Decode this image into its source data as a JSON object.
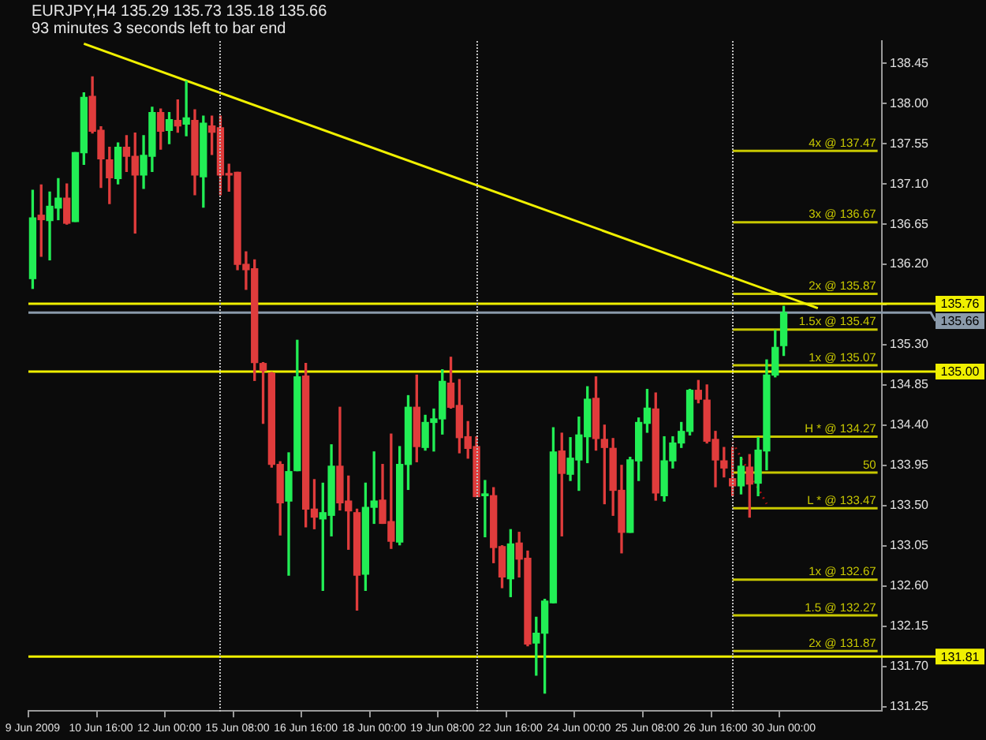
{
  "chart_data": {
    "type": "candlestick",
    "title": "EURJPY,H4 135.29 135.73 135.18 135.66",
    "subtitle": "93 minutes 3 seconds left to bar end",
    "categories": [
      "9 Jun 2009",
      null,
      null,
      null,
      null,
      null,
      null,
      null,
      "10 Jun 16:00",
      null,
      null,
      null,
      null,
      null,
      null,
      null,
      "12 Jun 00:00",
      null,
      null,
      null,
      null,
      null,
      null,
      null,
      "15 Jun 08:00",
      null,
      null,
      null,
      null,
      null,
      null,
      null,
      "16 Jun 16:00",
      null,
      null,
      null,
      null,
      null,
      null,
      null,
      "18 Jun 00:00",
      null,
      null,
      null,
      null,
      null,
      null,
      null,
      "19 Jun 08:00",
      null,
      null,
      null,
      null,
      null,
      null,
      null,
      "22 Jun 16:00",
      null,
      null,
      null,
      null,
      null,
      null,
      null,
      "24 Jun 00:00",
      null,
      null,
      null,
      null,
      null,
      null,
      null,
      "25 Jun 08:00",
      null,
      null,
      null,
      null,
      null,
      null,
      null,
      "26 Jun 16:00",
      null,
      null,
      null,
      null,
      null,
      null,
      null,
      "30 Jun 00:00",
      null,
      null,
      null,
      null,
      null,
      null,
      null,
      null,
      null,
      null,
      null
    ],
    "ohlc": [
      [
        136.04,
        137.03,
        135.93,
        136.72
      ],
      [
        136.75,
        137.09,
        136.29,
        136.7
      ],
      [
        136.69,
        137.01,
        136.25,
        136.85
      ],
      [
        136.83,
        137.16,
        136.7,
        136.94
      ],
      [
        136.94,
        137.1,
        136.65,
        136.66
      ],
      [
        136.68,
        137.45,
        136.68,
        137.45
      ],
      [
        137.45,
        138.12,
        137.32,
        138.07
      ],
      [
        138.08,
        138.3,
        137.67,
        137.69
      ],
      [
        137.7,
        137.74,
        137.06,
        137.38
      ],
      [
        137.37,
        137.51,
        136.88,
        137.17
      ],
      [
        137.16,
        137.56,
        137.1,
        137.51
      ],
      [
        137.51,
        137.64,
        137.24,
        137.41
      ],
      [
        137.41,
        137.67,
        136.55,
        137.2
      ],
      [
        137.2,
        137.64,
        137.05,
        137.42
      ],
      [
        137.41,
        137.96,
        137.24,
        137.9
      ],
      [
        137.9,
        137.94,
        137.49,
        137.69
      ],
      [
        137.7,
        137.9,
        137.55,
        137.82
      ],
      [
        137.81,
        138.04,
        137.68,
        137.75
      ],
      [
        137.77,
        138.25,
        137.64,
        137.84
      ],
      [
        137.81,
        137.93,
        136.98,
        137.2
      ],
      [
        137.18,
        137.86,
        136.84,
        137.78
      ],
      [
        137.75,
        137.86,
        137.43,
        137.68
      ],
      [
        137.73,
        137.86,
        136.98,
        137.2
      ],
      [
        137.21,
        137.32,
        137.02,
        137.2
      ],
      [
        137.23,
        137.23,
        136.14,
        136.2
      ],
      [
        136.2,
        136.34,
        135.92,
        136.14
      ],
      [
        136.15,
        136.25,
        134.9,
        135.1
      ],
      [
        135.09,
        135.1,
        134.42,
        135.01
      ],
      [
        134.98,
        134.99,
        133.93,
        133.96
      ],
      [
        133.96,
        133.99,
        133.17,
        133.53
      ],
      [
        133.55,
        134.09,
        132.72,
        133.88
      ],
      [
        133.89,
        135.35,
        133.89,
        134.94
      ],
      [
        134.95,
        135.09,
        133.26,
        133.46
      ],
      [
        133.46,
        133.79,
        133.24,
        133.37
      ],
      [
        133.35,
        133.75,
        132.55,
        133.42
      ],
      [
        133.39,
        134.18,
        133.16,
        133.94
      ],
      [
        133.94,
        134.6,
        133.45,
        133.53
      ],
      [
        133.55,
        133.83,
        133.01,
        133.44
      ],
      [
        133.42,
        133.46,
        132.33,
        132.72
      ],
      [
        132.73,
        133.75,
        132.55,
        133.48
      ],
      [
        133.48,
        134.1,
        133.3,
        133.55
      ],
      [
        133.56,
        133.96,
        133.3,
        133.3
      ],
      [
        133.32,
        134.3,
        133.02,
        133.1
      ],
      [
        133.09,
        134.16,
        133.06,
        133.96
      ],
      [
        133.96,
        134.73,
        133.68,
        134.6
      ],
      [
        134.6,
        134.96,
        133.99,
        134.16
      ],
      [
        134.15,
        134.51,
        134.12,
        134.43
      ],
      [
        134.43,
        134.58,
        134.11,
        134.47
      ],
      [
        134.47,
        135.02,
        134.3,
        134.89
      ],
      [
        134.87,
        135.16,
        134.59,
        134.6
      ],
      [
        134.62,
        134.91,
        134.09,
        134.26
      ],
      [
        134.27,
        134.44,
        134.03,
        134.14
      ],
      [
        134.16,
        134.27,
        133.6,
        133.6
      ],
      [
        133.61,
        133.78,
        133.15,
        133.63
      ],
      [
        133.61,
        133.7,
        132.86,
        133.03
      ],
      [
        133.04,
        133.05,
        132.58,
        132.7
      ],
      [
        132.68,
        133.23,
        132.48,
        133.07
      ],
      [
        133.08,
        133.2,
        132.7,
        132.9
      ],
      [
        132.91,
        132.99,
        131.93,
        131.95
      ],
      [
        131.96,
        132.25,
        131.6,
        132.07
      ],
      [
        132.07,
        132.45,
        131.4,
        132.43
      ],
      [
        132.41,
        134.37,
        132.41,
        134.1
      ],
      [
        134.11,
        134.31,
        133.16,
        133.86
      ],
      [
        133.85,
        134.26,
        133.78,
        134.03
      ],
      [
        134.01,
        134.49,
        133.67,
        134.29
      ],
      [
        134.27,
        134.83,
        133.98,
        134.69
      ],
      [
        134.7,
        134.94,
        134.12,
        134.25
      ],
      [
        134.24,
        134.4,
        133.52,
        134.15
      ],
      [
        134.14,
        134.25,
        133.39,
        133.67
      ],
      [
        133.67,
        133.95,
        132.97,
        133.2
      ],
      [
        133.2,
        134.04,
        133.2,
        134.01
      ],
      [
        134.0,
        134.48,
        133.78,
        134.43
      ],
      [
        134.42,
        134.8,
        134.32,
        134.59
      ],
      [
        134.58,
        134.76,
        133.56,
        133.64
      ],
      [
        133.61,
        134.27,
        133.55,
        134.0
      ],
      [
        134.0,
        134.27,
        133.92,
        134.2
      ],
      [
        134.2,
        134.43,
        134.15,
        134.33
      ],
      [
        134.33,
        134.8,
        134.29,
        134.79
      ],
      [
        134.79,
        134.9,
        134.65,
        134.69
      ],
      [
        134.68,
        134.85,
        134.2,
        134.22
      ],
      [
        134.24,
        134.33,
        133.71,
        134.01
      ],
      [
        134.0,
        134.15,
        133.82,
        133.92
      ],
      [
        133.8,
        134.15,
        133.61,
        133.72
      ],
      [
        133.72,
        134.04,
        133.63,
        133.94
      ],
      [
        133.93,
        134.07,
        133.37,
        133.74
      ],
      [
        133.75,
        134.26,
        133.61,
        134.12
      ],
      [
        134.11,
        135.13,
        133.9,
        134.96
      ],
      [
        134.96,
        135.46,
        134.94,
        135.27
      ],
      [
        135.29,
        135.73,
        135.18,
        135.66
      ],
      null,
      null,
      null,
      null,
      null,
      null,
      null,
      null,
      null,
      null,
      null
    ],
    "colors": [
      "#22ee55",
      "#e03c3c",
      "#22ee55",
      "#22ee55",
      "#e03c3c",
      "#22ee55",
      "#22ee55",
      "#e03c3c",
      "#e03c3c",
      "#e03c3c",
      "#22ee55",
      "#e03c3c",
      "#e03c3c",
      "#22ee55",
      "#22ee55",
      "#e03c3c",
      "#22ee55",
      "#e03c3c",
      "#22ee55",
      "#e03c3c",
      "#22ee55",
      "#e03c3c",
      "#e03c3c",
      "#e03c3c",
      "#e03c3c",
      "#e03c3c",
      "#e03c3c",
      "#e03c3c",
      "#e03c3c",
      "#e03c3c",
      "#22ee55",
      "#22ee55",
      "#e03c3c",
      "#e03c3c",
      "#22ee55",
      "#22ee55",
      "#e03c3c",
      "#e03c3c",
      "#e03c3c",
      "#22ee55",
      "#22ee55",
      "#e03c3c",
      "#e03c3c",
      "#22ee55",
      "#22ee55",
      "#e03c3c",
      "#22ee55",
      "#22ee55",
      "#22ee55",
      "#e03c3c",
      "#e03c3c",
      "#e03c3c",
      "#e03c3c",
      "#22ee55",
      "#e03c3c",
      "#e03c3c",
      "#22ee55",
      "#e03c3c",
      "#e03c3c",
      "#22ee55",
      "#22ee55",
      "#22ee55",
      "#e03c3c",
      "#22ee55",
      "#22ee55",
      "#22ee55",
      "#e03c3c",
      "#e03c3c",
      "#e03c3c",
      "#e03c3c",
      "#22ee55",
      "#22ee55",
      "#22ee55",
      "#e03c3c",
      "#22ee55",
      "#22ee55",
      "#22ee55",
      "#22ee55",
      "#e03c3c",
      "#e03c3c",
      "#e03c3c",
      "#e03c3c",
      "#e03c3c",
      "#22ee55",
      "#e03c3c",
      "#22ee55",
      "#22ee55",
      "#22ee55",
      "#22ee55",
      null,
      null,
      null,
      null,
      null,
      null,
      null,
      null,
      null,
      null,
      null
    ],
    "series": [
      {
        "type": "line",
        "color": "#f0f000",
        "values": [
          null,
          null,
          null,
          null,
          null,
          null,
          138.67,
          null,
          null,
          null,
          null,
          null,
          null,
          null,
          null,
          null,
          null,
          null,
          null,
          null,
          null,
          null,
          null,
          null,
          null,
          null,
          null,
          null,
          null,
          null,
          null,
          null,
          null,
          null,
          null,
          null,
          null,
          null,
          null,
          null,
          null,
          null,
          null,
          null,
          null,
          null,
          null,
          null,
          null,
          null,
          null,
          null,
          null,
          null,
          null,
          null,
          null,
          null,
          null,
          null,
          null,
          null,
          null,
          null,
          null,
          null,
          null,
          null,
          null,
          null,
          null,
          null,
          null,
          null,
          null,
          null,
          null,
          null,
          null,
          null,
          null,
          null,
          null,
          null,
          null,
          null,
          null,
          null,
          null,
          null,
          null,
          null,
          135.71,
          null,
          null,
          null,
          null,
          null,
          null,
          null
        ]
      },
      {
        "type": "line",
        "name": "4x @ 137.47",
        "color": "#c8c800",
        "values": [
          null,
          null,
          null,
          null,
          null,
          null,
          null,
          null,
          null,
          null,
          null,
          null,
          null,
          null,
          null,
          null,
          null,
          null,
          null,
          null,
          null,
          null,
          null,
          null,
          null,
          null,
          null,
          null,
          null,
          null,
          null,
          null,
          null,
          null,
          null,
          null,
          null,
          null,
          null,
          null,
          null,
          null,
          null,
          null,
          null,
          null,
          null,
          null,
          null,
          null,
          null,
          null,
          null,
          null,
          null,
          null,
          null,
          null,
          null,
          null,
          null,
          null,
          null,
          null,
          null,
          null,
          null,
          null,
          null,
          null,
          null,
          null,
          null,
          null,
          null,
          null,
          null,
          null,
          null,
          null,
          null,
          null,
          137.47,
          137.47,
          137.47,
          137.47,
          137.47,
          137.47,
          137.47,
          137.47,
          137.47,
          137.47,
          137.47,
          137.47,
          137.47,
          137.47,
          137.47,
          137.47,
          137.47,
          137.47
        ]
      },
      {
        "type": "line",
        "name": "3x @ 136.67",
        "color": "#c8c800",
        "values": [
          null,
          null,
          null,
          null,
          null,
          null,
          null,
          null,
          null,
          null,
          null,
          null,
          null,
          null,
          null,
          null,
          null,
          null,
          null,
          null,
          null,
          null,
          null,
          null,
          null,
          null,
          null,
          null,
          null,
          null,
          null,
          null,
          null,
          null,
          null,
          null,
          null,
          null,
          null,
          null,
          null,
          null,
          null,
          null,
          null,
          null,
          null,
          null,
          null,
          null,
          null,
          null,
          null,
          null,
          null,
          null,
          null,
          null,
          null,
          null,
          null,
          null,
          null,
          null,
          null,
          null,
          null,
          null,
          null,
          null,
          null,
          null,
          null,
          null,
          null,
          null,
          null,
          null,
          null,
          null,
          null,
          null,
          136.67,
          136.67,
          136.67,
          136.67,
          136.67,
          136.67,
          136.67,
          136.67,
          136.67,
          136.67,
          136.67,
          136.67,
          136.67,
          136.67,
          136.67,
          136.67,
          136.67,
          136.67
        ]
      },
      {
        "type": "line",
        "name": "2x @ 135.87",
        "color": "#c8c800",
        "values": [
          null,
          null,
          null,
          null,
          null,
          null,
          null,
          null,
          null,
          null,
          null,
          null,
          null,
          null,
          null,
          null,
          null,
          null,
          null,
          null,
          null,
          null,
          null,
          null,
          null,
          null,
          null,
          null,
          null,
          null,
          null,
          null,
          null,
          null,
          null,
          null,
          null,
          null,
          null,
          null,
          null,
          null,
          null,
          null,
          null,
          null,
          null,
          null,
          null,
          null,
          null,
          null,
          null,
          null,
          null,
          null,
          null,
          null,
          null,
          null,
          null,
          null,
          null,
          null,
          null,
          null,
          null,
          null,
          null,
          null,
          null,
          null,
          null,
          null,
          null,
          null,
          null,
          null,
          null,
          null,
          null,
          null,
          135.87,
          135.87,
          135.87,
          135.87,
          135.87,
          135.87,
          135.87,
          135.87,
          135.87,
          135.87,
          135.87,
          135.87,
          135.87,
          135.87,
          135.87,
          135.87,
          135.87,
          135.87
        ]
      },
      {
        "type": "line",
        "name": "1.5x @ 135.47",
        "color": "#c8c800",
        "values": [
          null,
          null,
          null,
          null,
          null,
          null,
          null,
          null,
          null,
          null,
          null,
          null,
          null,
          null,
          null,
          null,
          null,
          null,
          null,
          null,
          null,
          null,
          null,
          null,
          null,
          null,
          null,
          null,
          null,
          null,
          null,
          null,
          null,
          null,
          null,
          null,
          null,
          null,
          null,
          null,
          null,
          null,
          null,
          null,
          null,
          null,
          null,
          null,
          null,
          null,
          null,
          null,
          null,
          null,
          null,
          null,
          null,
          null,
          null,
          null,
          null,
          null,
          null,
          null,
          null,
          null,
          null,
          null,
          null,
          null,
          null,
          null,
          null,
          null,
          null,
          null,
          null,
          null,
          null,
          null,
          null,
          null,
          135.47,
          135.47,
          135.47,
          135.47,
          135.47,
          135.47,
          135.47,
          135.47,
          135.47,
          135.47,
          135.47,
          135.47,
          135.47,
          135.47,
          135.47,
          135.47,
          135.47,
          135.47
        ]
      },
      {
        "type": "line",
        "name": "1x @ 135.07",
        "color": "#c8c800",
        "values": [
          null,
          null,
          null,
          null,
          null,
          null,
          null,
          null,
          null,
          null,
          null,
          null,
          null,
          null,
          null,
          null,
          null,
          null,
          null,
          null,
          null,
          null,
          null,
          null,
          null,
          null,
          null,
          null,
          null,
          null,
          null,
          null,
          null,
          null,
          null,
          null,
          null,
          null,
          null,
          null,
          null,
          null,
          null,
          null,
          null,
          null,
          null,
          null,
          null,
          null,
          null,
          null,
          null,
          null,
          null,
          null,
          null,
          null,
          null,
          null,
          null,
          null,
          null,
          null,
          null,
          null,
          null,
          null,
          null,
          null,
          null,
          null,
          null,
          null,
          null,
          null,
          null,
          null,
          null,
          null,
          null,
          null,
          135.07,
          135.07,
          135.07,
          135.07,
          135.07,
          135.07,
          135.07,
          135.07,
          135.07,
          135.07,
          135.07,
          135.07,
          135.07,
          135.07,
          135.07,
          135.07,
          135.07,
          135.07
        ]
      },
      {
        "type": "line",
        "name": "H * @ 134.27",
        "color": "#c8c800",
        "values": [
          null,
          null,
          null,
          null,
          null,
          null,
          null,
          null,
          null,
          null,
          null,
          null,
          null,
          null,
          null,
          null,
          null,
          null,
          null,
          null,
          null,
          null,
          null,
          null,
          null,
          null,
          null,
          null,
          null,
          null,
          null,
          null,
          null,
          null,
          null,
          null,
          null,
          null,
          null,
          null,
          null,
          null,
          null,
          null,
          null,
          null,
          null,
          null,
          null,
          null,
          null,
          null,
          null,
          null,
          null,
          null,
          null,
          null,
          null,
          null,
          null,
          null,
          null,
          null,
          null,
          null,
          null,
          null,
          null,
          null,
          null,
          null,
          null,
          null,
          null,
          null,
          null,
          null,
          null,
          null,
          null,
          null,
          134.27,
          134.27,
          134.27,
          134.27,
          134.27,
          134.27,
          134.27,
          134.27,
          134.27,
          134.27,
          134.27,
          134.27,
          134.27,
          134.27,
          134.27,
          134.27,
          134.27,
          134.27
        ]
      },
      {
        "type": "line",
        "name": "50",
        "color": "#c8c800",
        "values": [
          null,
          null,
          null,
          null,
          null,
          null,
          null,
          null,
          null,
          null,
          null,
          null,
          null,
          null,
          null,
          null,
          null,
          null,
          null,
          null,
          null,
          null,
          null,
          null,
          null,
          null,
          null,
          null,
          null,
          null,
          null,
          null,
          null,
          null,
          null,
          null,
          null,
          null,
          null,
          null,
          null,
          null,
          null,
          null,
          null,
          null,
          null,
          null,
          null,
          null,
          null,
          null,
          null,
          null,
          null,
          null,
          null,
          null,
          null,
          null,
          null,
          null,
          null,
          null,
          null,
          null,
          null,
          null,
          null,
          null,
          null,
          null,
          null,
          null,
          null,
          null,
          null,
          null,
          null,
          null,
          null,
          null,
          133.87,
          133.87,
          133.87,
          133.87,
          133.87,
          133.87,
          133.87,
          133.87,
          133.87,
          133.87,
          133.87,
          133.87,
          133.87,
          133.87,
          133.87,
          133.87,
          133.87,
          133.87
        ]
      },
      {
        "type": "line",
        "name": "L * @ 133.47",
        "color": "#c8c800",
        "values": [
          null,
          null,
          null,
          null,
          null,
          null,
          null,
          null,
          null,
          null,
          null,
          null,
          null,
          null,
          null,
          null,
          null,
          null,
          null,
          null,
          null,
          null,
          null,
          null,
          null,
          null,
          null,
          null,
          null,
          null,
          null,
          null,
          null,
          null,
          null,
          null,
          null,
          null,
          null,
          null,
          null,
          null,
          null,
          null,
          null,
          null,
          null,
          null,
          null,
          null,
          null,
          null,
          null,
          null,
          null,
          null,
          null,
          null,
          null,
          null,
          null,
          null,
          null,
          null,
          null,
          null,
          null,
          null,
          null,
          null,
          null,
          null,
          null,
          null,
          null,
          null,
          null,
          null,
          null,
          null,
          null,
          null,
          133.47,
          133.47,
          133.47,
          133.47,
          133.47,
          133.47,
          133.47,
          133.47,
          133.47,
          133.47,
          133.47,
          133.47,
          133.47,
          133.47,
          133.47,
          133.47,
          133.47,
          133.47
        ]
      },
      {
        "type": "line",
        "name": "1x @ 132.67",
        "color": "#c8c800",
        "values": [
          null,
          null,
          null,
          null,
          null,
          null,
          null,
          null,
          null,
          null,
          null,
          null,
          null,
          null,
          null,
          null,
          null,
          null,
          null,
          null,
          null,
          null,
          null,
          null,
          null,
          null,
          null,
          null,
          null,
          null,
          null,
          null,
          null,
          null,
          null,
          null,
          null,
          null,
          null,
          null,
          null,
          null,
          null,
          null,
          null,
          null,
          null,
          null,
          null,
          null,
          null,
          null,
          null,
          null,
          null,
          null,
          null,
          null,
          null,
          null,
          null,
          null,
          null,
          null,
          null,
          null,
          null,
          null,
          null,
          null,
          null,
          null,
          null,
          null,
          null,
          null,
          null,
          null,
          null,
          null,
          null,
          null,
          132.67,
          132.67,
          132.67,
          132.67,
          132.67,
          132.67,
          132.67,
          132.67,
          132.67,
          132.67,
          132.67,
          132.67,
          132.67,
          132.67,
          132.67,
          132.67,
          132.67,
          132.67
        ]
      },
      {
        "type": "line",
        "name": "1.5 @ 132.27",
        "color": "#c8c800",
        "values": [
          null,
          null,
          null,
          null,
          null,
          null,
          null,
          null,
          null,
          null,
          null,
          null,
          null,
          null,
          null,
          null,
          null,
          null,
          null,
          null,
          null,
          null,
          null,
          null,
          null,
          null,
          null,
          null,
          null,
          null,
          null,
          null,
          null,
          null,
          null,
          null,
          null,
          null,
          null,
          null,
          null,
          null,
          null,
          null,
          null,
          null,
          null,
          null,
          null,
          null,
          null,
          null,
          null,
          null,
          null,
          null,
          null,
          null,
          null,
          null,
          null,
          null,
          null,
          null,
          null,
          null,
          null,
          null,
          null,
          null,
          null,
          null,
          null,
          null,
          null,
          null,
          null,
          null,
          null,
          null,
          null,
          null,
          132.27,
          132.27,
          132.27,
          132.27,
          132.27,
          132.27,
          132.27,
          132.27,
          132.27,
          132.27,
          132.27,
          132.27,
          132.27,
          132.27,
          132.27,
          132.27,
          132.27,
          132.27
        ]
      },
      {
        "type": "line",
        "name": "2x @ 131.87",
        "color": "#c8c800",
        "values": [
          null,
          null,
          null,
          null,
          null,
          null,
          null,
          null,
          null,
          null,
          null,
          null,
          null,
          null,
          null,
          null,
          null,
          null,
          null,
          null,
          null,
          null,
          null,
          null,
          null,
          null,
          null,
          null,
          null,
          null,
          null,
          null,
          null,
          null,
          null,
          null,
          null,
          null,
          null,
          null,
          null,
          null,
          null,
          null,
          null,
          null,
          null,
          null,
          null,
          null,
          null,
          null,
          null,
          null,
          null,
          null,
          null,
          null,
          null,
          null,
          null,
          null,
          null,
          null,
          null,
          null,
          null,
          null,
          null,
          null,
          null,
          null,
          null,
          null,
          null,
          null,
          null,
          null,
          null,
          null,
          null,
          null,
          131.87,
          131.87,
          131.87,
          131.87,
          131.87,
          131.87,
          131.87,
          131.87,
          131.87,
          131.87,
          131.87,
          131.87,
          131.87,
          131.87,
          131.87,
          131.87,
          131.87,
          131.87
        ]
      },
      {
        "type": "line",
        "color": "#b01010",
        "line_style": "dotted",
        "values": [
          null,
          null,
          null,
          null,
          null,
          null,
          null,
          null,
          null,
          null,
          null,
          null,
          null,
          null,
          null,
          null,
          null,
          null,
          null,
          null,
          null,
          null,
          null,
          null,
          null,
          null,
          null,
          null,
          null,
          null,
          null,
          null,
          null,
          null,
          null,
          null,
          null,
          null,
          null,
          null,
          null,
          null,
          null,
          null,
          null,
          null,
          null,
          null,
          null,
          null,
          null,
          null,
          null,
          null,
          null,
          null,
          null,
          null,
          null,
          null,
          null,
          null,
          null,
          null,
          null,
          null,
          null,
          null,
          null,
          null,
          null,
          null,
          null,
          null,
          null,
          null,
          null,
          null,
          null,
          null,
          null,
          null,
          134.21,
          null,
          null,
          null,
          133.52,
          null,
          null,
          null,
          null,
          null,
          null,
          null,
          null,
          null,
          null,
          null,
          null,
          null
        ]
      }
    ],
    "ref_lines": [
      {
        "axis": "y",
        "value": 135.76,
        "label": "135.76",
        "color": "#f0f000"
      },
      {
        "axis": "y",
        "value": 135.66,
        "label": "135.66",
        "color": "#8a9aaa"
      },
      {
        "axis": "y",
        "value": 135.0,
        "label": "135.00",
        "color": "#f0f000"
      },
      {
        "axis": "y",
        "value": 131.81,
        "label": "131.81",
        "color": "#f0f000"
      }
    ],
    "ylim": [
      131.2,
      138.7
    ],
    "yticks": [
      {
        "value": 131.25,
        "label": "131.25"
      },
      {
        "value": 131.7,
        "label": "131.70"
      },
      {
        "value": 132.15,
        "label": "132.15"
      },
      {
        "value": 132.6,
        "label": "132.60"
      },
      {
        "value": 133.05,
        "label": "133.05"
      },
      {
        "value": 133.5,
        "label": "133.50"
      },
      {
        "value": 133.95,
        "label": "133.95"
      },
      {
        "value": 134.4,
        "label": "134.40"
      },
      {
        "value": 134.85,
        "label": "134.85"
      },
      {
        "value": 135.3,
        "label": "135.30"
      },
      {
        "value": 135.75,
        "label": null
      },
      {
        "value": 136.2,
        "label": "136.20"
      },
      {
        "value": 136.65,
        "label": "136.65"
      },
      {
        "value": 137.1,
        "label": "137.10"
      },
      {
        "value": 137.55,
        "label": "137.55"
      },
      {
        "value": 138.0,
        "label": "138.00"
      },
      {
        "value": 138.45,
        "label": "138.45"
      }
    ]
  }
}
